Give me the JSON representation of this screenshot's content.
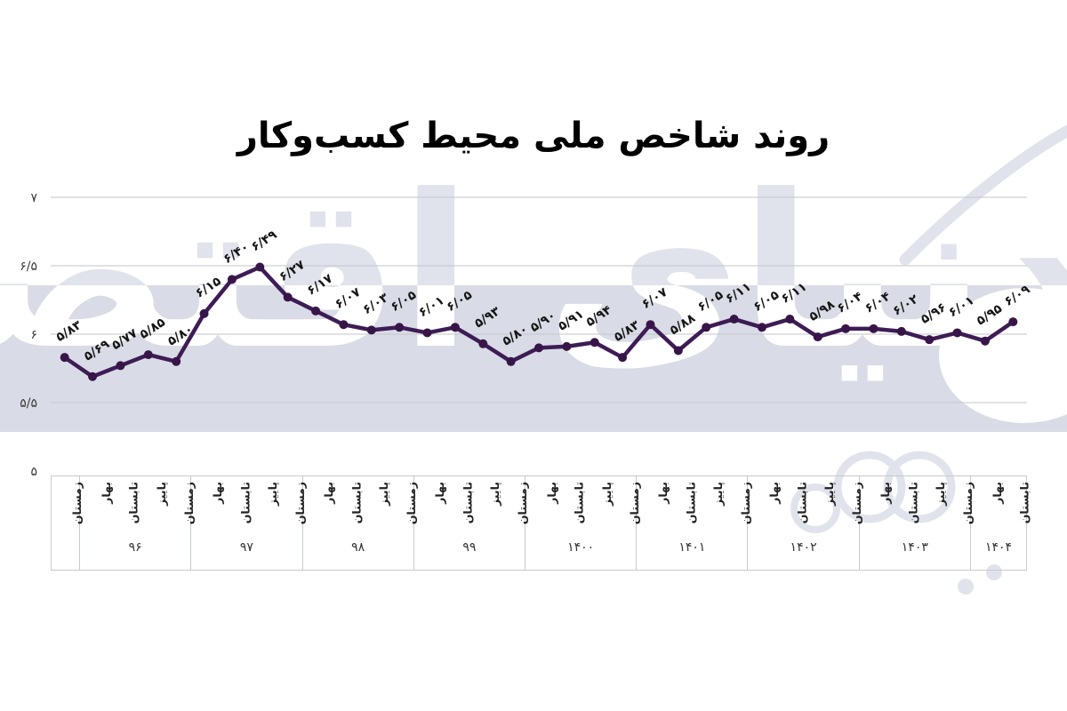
{
  "title": "روند شاخص ملی محیط کسب‌وکار",
  "watermark": {
    "text": "دنیای اقتصاد"
  },
  "colors": {
    "line": "#3e1c55",
    "marker": "#371548",
    "band": "#d9dce6",
    "grid": "#c4c6cb",
    "table_border": "#c9cacd",
    "data_label": "#151515",
    "axis_text": "#3a3a3a",
    "watermark_on_white": "#e0e3ec",
    "watermark_on_band": "#ffffff",
    "title_color": "#000000"
  },
  "chart_data": {
    "type": "line",
    "title": "روند شاخص ملی محیط کسب‌وکار",
    "xlabel": "",
    "ylabel": "",
    "ylim": [
      5,
      7
    ],
    "grid": "horizontal",
    "legend": "none",
    "yticks": [
      {
        "value": 7,
        "label": "۷"
      },
      {
        "value": 6.5,
        "label": "۶/۵"
      },
      {
        "value": 6,
        "label": "۶"
      },
      {
        "value": 5.5,
        "label": "۵/۵"
      },
      {
        "value": 5,
        "label": "۵"
      }
    ],
    "values": [
      5.83,
      5.69,
      5.77,
      5.85,
      5.8,
      6.15,
      6.4,
      6.49,
      6.27,
      6.17,
      6.07,
      6.03,
      6.05,
      6.01,
      6.05,
      5.93,
      5.8,
      5.9,
      5.91,
      5.94,
      5.83,
      6.07,
      5.88,
      6.05,
      6.11,
      6.05,
      6.11,
      5.98,
      6.04,
      6.04,
      6.02,
      5.96,
      6.01,
      5.95,
      6.09
    ],
    "point_labels": [
      "۵/۸۳",
      "۵/۶۹",
      "۵/۷۷",
      "۵/۸۵",
      "۵/۸۰",
      "۶/۱۵",
      "۶/۴۰",
      "۶/۴۹",
      "۶/۲۷",
      "۶/۱۷",
      "۶/۰۷",
      "۶/۰۳",
      "۶/۰۵",
      "۶/۰۱",
      "۶/۰۵",
      "۵/۹۳",
      "۵/۸۰",
      "۵/۹۰",
      "۵/۹۱",
      "۵/۹۴",
      "۵/۸۳",
      "۶/۰۷",
      "۵/۸۸",
      "۶/۰۵",
      "۶/۱۱",
      "۶/۰۵",
      "۶/۱۱",
      "۵/۹۸",
      "۶/۰۴",
      "۶/۰۴",
      "۶/۰۲",
      "۵/۹۶",
      "۶/۰۱",
      "۵/۹۵",
      "۶/۰۹"
    ],
    "x_axis": {
      "groups": [
        {
          "year": "",
          "seasons": [
            "زمستان"
          ]
        },
        {
          "year": "۹۶",
          "seasons": [
            "بهار",
            "تابستان",
            "پاییز",
            "زمستان"
          ]
        },
        {
          "year": "۹۷",
          "seasons": [
            "بهار",
            "تابستان",
            "پاییز",
            "زمستان"
          ]
        },
        {
          "year": "۹۸",
          "seasons": [
            "بهار",
            "تابستان",
            "پاییز",
            "زمستان"
          ]
        },
        {
          "year": "۹۹",
          "seasons": [
            "بهار",
            "تابستان",
            "پاییز",
            "زمستان"
          ]
        },
        {
          "year": "۱۴۰۰",
          "seasons": [
            "بهار",
            "تابستان",
            "پاییز",
            "زمستان"
          ]
        },
        {
          "year": "۱۴۰۱",
          "seasons": [
            "بهار",
            "تابستان",
            "پاییز",
            "زمستان"
          ]
        },
        {
          "year": "۱۴۰۲",
          "seasons": [
            "بهار",
            "تابستان",
            "پاییز",
            "زمستان"
          ]
        },
        {
          "year": "۱۴۰۳",
          "seasons": [
            "بهار",
            "تابستان",
            "پاییز",
            "زمستان"
          ]
        },
        {
          "year": "۱۴۰۴",
          "seasons": [
            "بهار",
            "تابستان"
          ]
        }
      ]
    }
  }
}
